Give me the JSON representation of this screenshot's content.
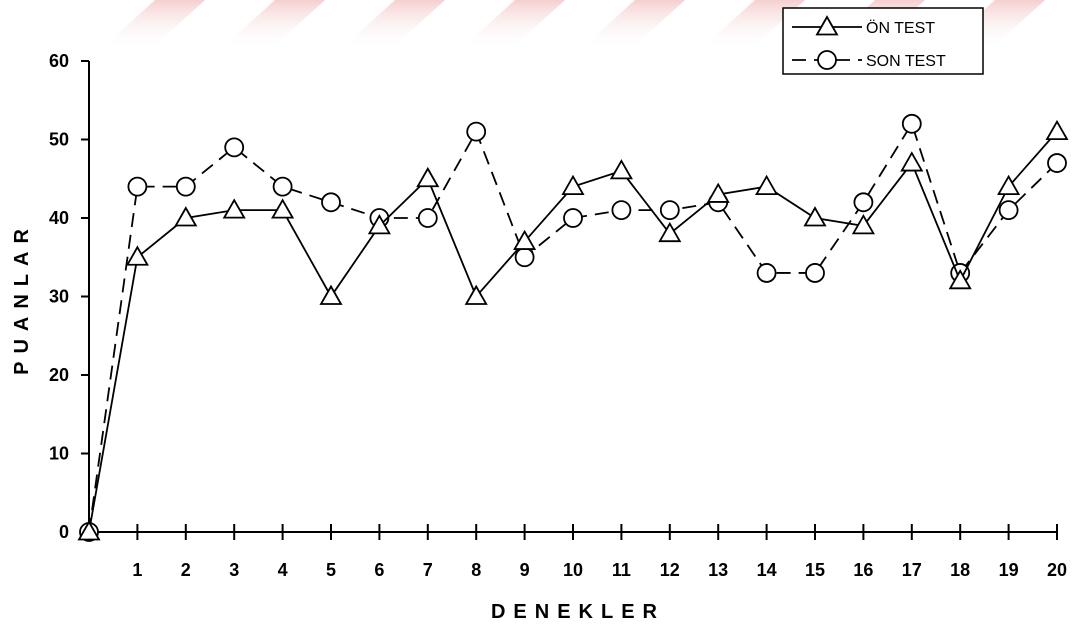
{
  "chart_data": {
    "type": "line",
    "xlabel": "DENEKLER",
    "ylabel": "PUANLAR",
    "x": [
      0,
      1,
      2,
      3,
      4,
      5,
      6,
      7,
      8,
      9,
      10,
      11,
      12,
      13,
      14,
      15,
      16,
      17,
      18,
      19,
      20
    ],
    "x_tick_labels": [
      "1",
      "2",
      "3",
      "4",
      "5",
      "6",
      "7",
      "8",
      "9",
      "10",
      "11",
      "12",
      "13",
      "14",
      "15",
      "16",
      "17",
      "18",
      "19",
      "20"
    ],
    "y_tick_labels": [
      "0",
      "10",
      "20",
      "30",
      "40",
      "50",
      "60"
    ],
    "ylim": [
      0,
      60
    ],
    "xlim": [
      0,
      20
    ],
    "grid": false,
    "legend_position": "top-right",
    "series": [
      {
        "name": "ÖN TEST",
        "marker": "triangle",
        "line_style": "solid",
        "values": [
          0,
          35,
          40,
          41,
          41,
          30,
          39,
          45,
          30,
          37,
          44,
          46,
          38,
          43,
          44,
          40,
          39,
          47,
          32,
          44,
          51
        ]
      },
      {
        "name": "SON TEST",
        "marker": "circle",
        "line_style": "dashed",
        "values": [
          0,
          44,
          44,
          49,
          44,
          42,
          40,
          40,
          51,
          35,
          40,
          41,
          41,
          42,
          33,
          33,
          42,
          52,
          33,
          41,
          47
        ]
      }
    ]
  }
}
